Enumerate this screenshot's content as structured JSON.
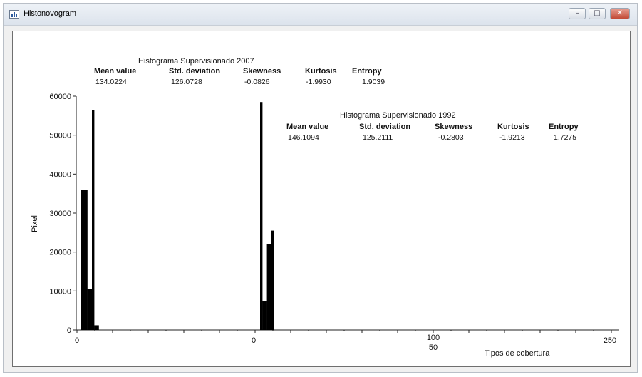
{
  "window": {
    "title": "Histonovogram",
    "minimize_icon": "minimize-icon",
    "maximize_icon": "maximize-icon",
    "close_icon": "close-icon"
  },
  "stats_2007": {
    "title": "Histograma Supervisionado 2007",
    "headers": [
      "Mean value",
      "Std. deviation",
      "Skewness",
      "Kurtosis",
      "Entropy"
    ],
    "values": [
      "134.0224",
      "126.0728",
      "-0.0826",
      "-1.9930",
      "1.9039"
    ]
  },
  "stats_1992": {
    "title": "Histograma Supervisionado 1992",
    "headers": [
      "Mean value",
      "Std. deviation",
      "Skewness",
      "Kurtosis",
      "Entropy"
    ],
    "values": [
      "146.1094",
      "125.2111",
      "-0.2803",
      "-1.9213",
      "1.7275"
    ]
  },
  "chart_data": [
    {
      "type": "bar",
      "title": "Histograma Supervisionado 2007",
      "xlabel": "Tipos de cobertura",
      "ylabel": "Pixel",
      "xlim": [
        0,
        255
      ],
      "ylim": [
        0,
        60000
      ],
      "yticks": [
        "0",
        "10000",
        "20000",
        "30000",
        "40000",
        "50000",
        "60000"
      ],
      "xticks": [
        "0",
        "100",
        "250"
      ],
      "bars": [
        {
          "x": 1,
          "value": 36000
        },
        {
          "x": 2,
          "value": 36000
        },
        {
          "x": 3,
          "value": 36000
        },
        {
          "x": 4,
          "value": 10500
        },
        {
          "x": 5,
          "value": 10500
        },
        {
          "x": 6,
          "value": 56500
        },
        {
          "x": 7,
          "value": 1200
        },
        {
          "x": 8,
          "value": 1200
        }
      ]
    },
    {
      "type": "bar",
      "title": "Histograma Supervisionado 1992",
      "xlabel": "",
      "ylabel": "",
      "xlim": [
        0,
        255
      ],
      "ylim": [
        0,
        60000
      ],
      "xticks": [
        "0",
        "50"
      ],
      "bars": [
        {
          "x": 1,
          "value": 58500
        },
        {
          "x": 2,
          "value": 7500
        },
        {
          "x": 3,
          "value": 7500
        },
        {
          "x": 4,
          "value": 22000
        },
        {
          "x": 5,
          "value": 22000
        },
        {
          "x": 6,
          "value": 25500
        }
      ]
    }
  ]
}
